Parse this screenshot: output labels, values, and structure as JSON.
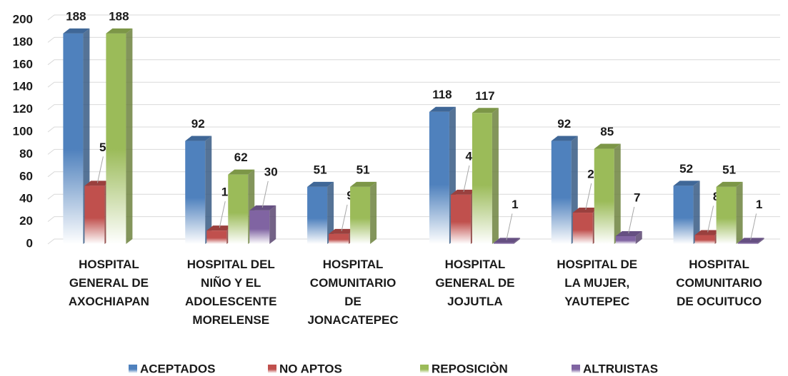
{
  "chart_data": {
    "type": "bar3d",
    "categories": [
      "HOSPITAL GENERAL DE AXOCHIAPAN",
      "HOSPITAL DEL NIÑO Y EL ADOLESCENTE MORELENSE",
      "HOSPITAL COMUNITARIO DE JONACATEPEC",
      "HOSPITAL GENERAL DE JOJUTLA",
      "HOSPITAL DE LA MUJER, YAUTEPEC",
      "HOSPITAL COMUNITARIO DE OCUITUCO"
    ],
    "series": [
      {
        "name": "ACEPTADOS",
        "color": "#4f81bd",
        "values": [
          188,
          92,
          51,
          118,
          92,
          52
        ]
      },
      {
        "name": "NO APTOS",
        "color": "#c0504d",
        "values": [
          52,
          12,
          9,
          44,
          28,
          8
        ]
      },
      {
        "name": "REPOSICIÒN",
        "color": "#9bbb59",
        "values": [
          188,
          62,
          51,
          117,
          85,
          51
        ]
      },
      {
        "name": "ALTRUISTAS",
        "color": "#8064a2",
        "values": [
          null,
          30,
          null,
          1,
          7,
          1
        ]
      }
    ],
    "ylim": [
      0,
      200
    ],
    "yticks": [
      0,
      20,
      40,
      60,
      80,
      100,
      120,
      140,
      160,
      180,
      200
    ],
    "grid": true,
    "legend": "bottom"
  }
}
